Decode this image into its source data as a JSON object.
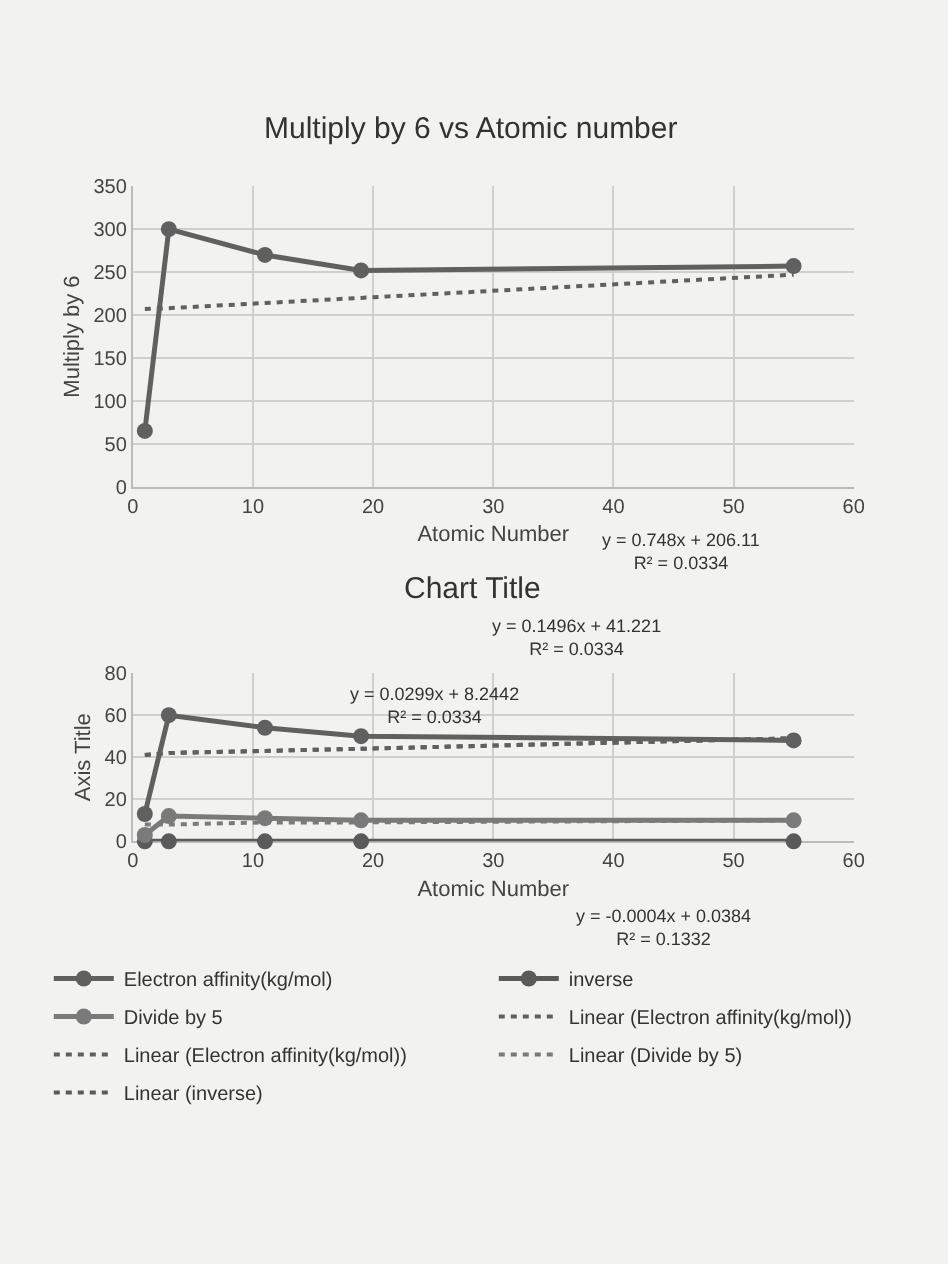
{
  "chart_data": [
    {
      "type": "line",
      "title": "Multiply by 6 vs Atomic number",
      "xlabel": "Atomic Number",
      "ylabel": "Multiply by 6",
      "x": [
        1,
        3,
        11,
        19,
        55
      ],
      "xlim": [
        0,
        60
      ],
      "xticks": [
        0,
        10,
        20,
        30,
        40,
        50,
        60
      ],
      "ylim": [
        0,
        350
      ],
      "yticks": [
        0,
        50,
        100,
        150,
        200,
        250,
        300,
        350
      ],
      "grid": true,
      "legend": false,
      "series": [
        {
          "color": "#606060",
          "values": [
            65,
            300,
            270,
            252,
            257
          ],
          "marker": "circle",
          "line_style": "solid"
        },
        {
          "color": "#606060",
          "values": [
            207,
            208,
            214,
            220,
            247
          ],
          "marker": "none",
          "line_style": "dotted"
        }
      ],
      "annotations": [
        "y = 0.748x + 206.11\nR² = 0.0334"
      ]
    },
    {
      "type": "line",
      "title": "Chart Title",
      "xlabel": "Atomic Number",
      "ylabel": "Axis Title",
      "x": [
        1,
        3,
        11,
        19,
        55
      ],
      "xlim": [
        0,
        60
      ],
      "xticks": [
        0,
        10,
        20,
        30,
        40,
        50,
        60
      ],
      "ylim": [
        0,
        80
      ],
      "yticks": [
        0,
        20,
        40,
        60,
        80
      ],
      "grid": true,
      "legend": "bottom",
      "series": [
        {
          "name": "Electron affinity(kg/mol)",
          "color": "#606060",
          "values": [
            13,
            60,
            54,
            50,
            48
          ],
          "marker": "circle",
          "line_style": "solid"
        },
        {
          "name": "inverse",
          "color": "#5a5a5a",
          "values": [
            0,
            0,
            0,
            0,
            0
          ],
          "marker": "circle",
          "line_style": "solid"
        },
        {
          "name": "Divide by 5",
          "color": "#7a7a7a",
          "values": [
            3,
            12,
            11,
            10,
            10
          ],
          "marker": "circle",
          "line_style": "solid"
        },
        {
          "name": "Linear (Electron affinity(kg/mol))",
          "color": "#606060",
          "values": [
            41,
            42,
            43,
            44,
            49
          ],
          "marker": "none",
          "line_style": "dotted"
        },
        {
          "name": "Linear (Electron affinity(kg/mol))",
          "color": "#606060",
          "values": [
            41,
            42,
            43,
            44,
            49
          ],
          "marker": "none",
          "line_style": "dotted"
        },
        {
          "name": "Linear (Divide by 5)",
          "color": "#7a7a7a",
          "values": [
            8,
            8,
            9,
            9,
            10
          ],
          "marker": "none",
          "line_style": "dotted"
        },
        {
          "name": "Linear (inverse)",
          "color": "#5a5a5a",
          "values": [
            null,
            null,
            null,
            null,
            null
          ],
          "marker": "none",
          "line_style": "dotted"
        }
      ],
      "annotations": [
        "y = 0.1496x + 41.221\nR² = 0.0334",
        "y = 0.0299x + 8.2442\nR² = 0.0334",
        "y = -0.0004x + 0.0384\nR² = 0.1332"
      ]
    }
  ]
}
